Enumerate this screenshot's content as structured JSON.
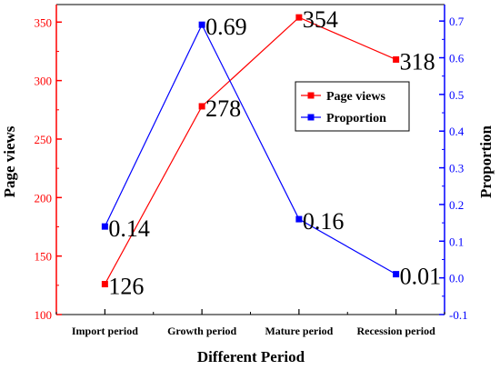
{
  "chart_data": {
    "type": "line",
    "categories": [
      "Import period",
      "Growth period",
      "Mature period",
      "Recession period"
    ],
    "xlabel": "Different Period",
    "series": [
      {
        "name": "Page views",
        "axis": "left",
        "color": "#ff0000",
        "values": [
          126,
          278,
          354,
          318
        ],
        "labels": [
          "126",
          "278",
          "354",
          "318"
        ]
      },
      {
        "name": "Proportion",
        "axis": "right",
        "color": "#0000ff",
        "values": [
          0.14,
          0.69,
          0.16,
          0.01
        ],
        "labels": [
          "0.14",
          "0.69",
          "0.16",
          "0.01"
        ]
      }
    ],
    "y_left": {
      "label": "Page views",
      "color": "#ff0000",
      "lim": [
        100,
        365
      ],
      "ticks": [
        "100",
        "150",
        "200",
        "250",
        "300",
        "350"
      ]
    },
    "y_right": {
      "label": "Proportion",
      "color": "#0000ff",
      "lim": [
        -0.1,
        0.745
      ],
      "ticks": [
        "-0.1",
        "0.0",
        "0.1",
        "0.2",
        "0.3",
        "0.4",
        "0.5",
        "0.6",
        "0.7"
      ]
    },
    "legend_position": "upper-right",
    "grid": false
  }
}
